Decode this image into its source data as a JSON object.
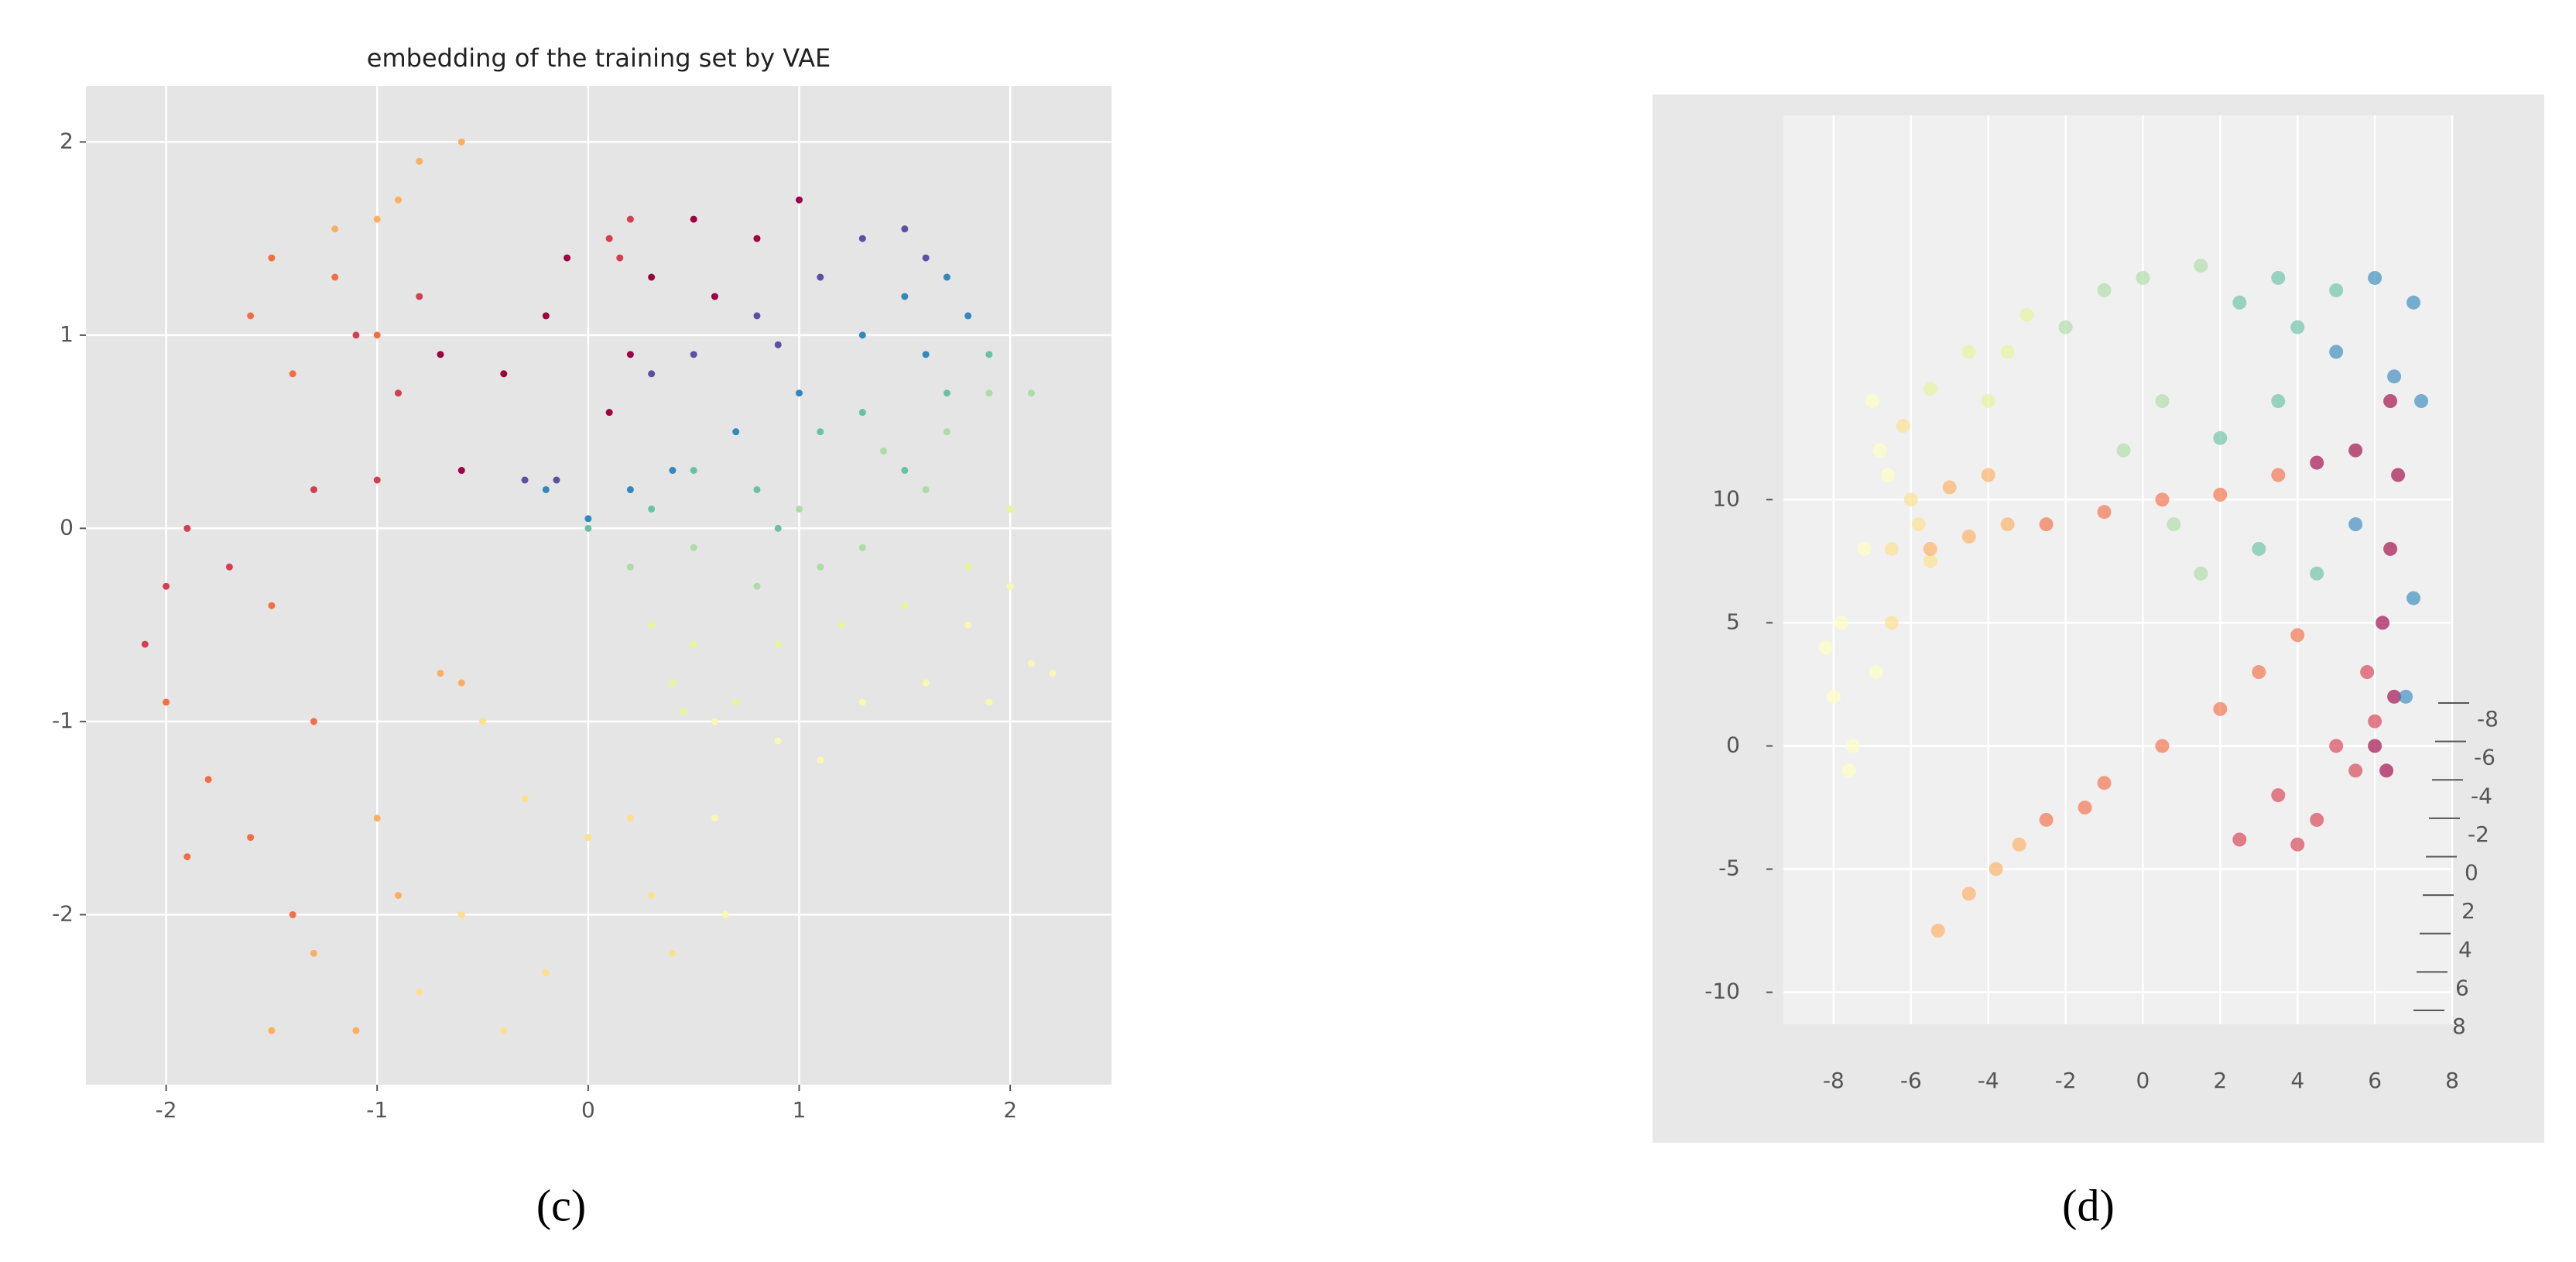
{
  "chart_data": [
    {
      "type": "scatter",
      "title": "embedding of the training set by VAE",
      "caption": "(c)",
      "xlim": [
        -2.38,
        2.48
      ],
      "ylim": [
        -2.88,
        2.29
      ],
      "xticks": [
        -2,
        -1,
        0,
        1,
        2
      ],
      "yticks": [
        -2,
        -1,
        0,
        1,
        2
      ],
      "grid": true,
      "series": [
        {
          "color": "#9e0142",
          "x": [
            -0.6,
            -0.4,
            -0.2,
            0.1,
            0.3,
            0.5,
            0.8,
            1.0,
            0.6,
            -0.1,
            -0.7,
            0.2
          ],
          "y": [
            0.3,
            0.8,
            1.1,
            0.6,
            1.3,
            1.6,
            1.5,
            1.7,
            1.2,
            1.4,
            0.9,
            0.9
          ]
        },
        {
          "color": "#d53e4f",
          "x": [
            0.1,
            0.2,
            0.15,
            -1.1,
            -0.9,
            -0.8,
            -2.0,
            -1.9,
            -2.1,
            -1.7,
            -1.0,
            -1.3
          ],
          "y": [
            1.5,
            1.6,
            1.4,
            1.0,
            0.7,
            1.2,
            -0.3,
            0.0,
            -0.6,
            -0.2,
            0.25,
            0.2
          ]
        },
        {
          "color": "#f46d43",
          "x": [
            -1.5,
            -1.6,
            -1.4,
            -1.2,
            -1.0,
            -2.0,
            -1.8,
            -1.6,
            -1.5,
            -1.3,
            -1.9,
            -1.4
          ],
          "y": [
            1.4,
            1.1,
            0.8,
            1.3,
            1.0,
            -0.9,
            -1.3,
            -1.6,
            -0.4,
            -1.0,
            -1.7,
            -2.0
          ]
        },
        {
          "color": "#fdae61",
          "x": [
            -1.0,
            -0.8,
            -0.6,
            -0.9,
            -1.2,
            -0.7,
            -0.6,
            -1.0,
            -1.3,
            -1.5,
            -1.1,
            -0.9
          ],
          "y": [
            1.6,
            1.9,
            2.0,
            1.7,
            1.55,
            -0.75,
            -0.8,
            -1.5,
            -2.2,
            -2.6,
            -2.6,
            -1.9
          ]
        },
        {
          "color": "#fee08b",
          "x": [
            -0.5,
            -0.3,
            -0.6,
            -0.2,
            0.0,
            -0.8,
            0.4,
            0.3,
            -0.4,
            0.2
          ],
          "y": [
            -1.0,
            -1.4,
            -2.0,
            -2.3,
            -1.6,
            -2.4,
            -2.2,
            -1.9,
            -2.6,
            -1.5
          ]
        },
        {
          "color": "#f7f9b0",
          "x": [
            0.6,
            0.9,
            1.3,
            1.6,
            1.9,
            2.1,
            2.2,
            1.1,
            0.6,
            0.65,
            1.8,
            2.0
          ],
          "y": [
            -1.0,
            -1.1,
            -0.9,
            -0.8,
            -0.9,
            -0.7,
            -0.75,
            -1.2,
            -1.5,
            -2.0,
            -0.5,
            -0.3
          ]
        },
        {
          "color": "#e6f598",
          "x": [
            0.3,
            0.4,
            0.5,
            0.7,
            0.9,
            1.2,
            0.45,
            1.5,
            1.8,
            2.0
          ],
          "y": [
            -0.5,
            -0.8,
            -0.6,
            -0.9,
            -0.6,
            -0.5,
            -0.95,
            -0.4,
            -0.2,
            0.1
          ]
        },
        {
          "color": "#abdda4",
          "x": [
            0.2,
            0.5,
            0.8,
            1.0,
            1.3,
            1.6,
            1.7,
            1.9,
            2.1,
            1.4,
            1.1
          ],
          "y": [
            -0.2,
            -0.1,
            -0.3,
            0.1,
            -0.1,
            0.2,
            0.5,
            0.7,
            0.7,
            0.4,
            -0.2
          ]
        },
        {
          "color": "#66c2a5",
          "x": [
            0.0,
            0.3,
            0.5,
            0.8,
            1.1,
            1.3,
            1.5,
            1.7,
            1.9,
            0.9
          ],
          "y": [
            0.0,
            0.1,
            0.3,
            0.2,
            0.5,
            0.6,
            0.3,
            0.7,
            0.9,
            0.0
          ]
        },
        {
          "color": "#3288bd",
          "x": [
            -0.2,
            0.0,
            0.2,
            0.4,
            0.7,
            1.0,
            1.3,
            1.5,
            1.7,
            1.8,
            1.6
          ],
          "y": [
            0.2,
            0.05,
            0.2,
            0.3,
            0.5,
            0.7,
            1.0,
            1.2,
            1.3,
            1.1,
            0.9
          ]
        },
        {
          "color": "#5e4fa2",
          "x": [
            -0.15,
            -0.3,
            0.3,
            0.5,
            0.8,
            1.1,
            1.3,
            1.5,
            1.6,
            0.9
          ],
          "y": [
            0.25,
            0.25,
            0.8,
            0.9,
            1.1,
            1.3,
            1.5,
            1.55,
            1.4,
            0.95
          ]
        }
      ]
    },
    {
      "type": "scatter3d",
      "caption": "(d)",
      "xlim": [
        -9.3,
        8.0
      ],
      "zlim": [
        -11.3,
        25.6
      ],
      "xticks": [
        -8,
        -6,
        -4,
        -2,
        0,
        2,
        4,
        6,
        8
      ],
      "zticks": [
        -10,
        -5,
        0,
        5,
        10
      ],
      "yticks": [
        -8,
        -6,
        -4,
        -2,
        0,
        2,
        4,
        6,
        8
      ],
      "grid": true,
      "series": [
        {
          "color": "#ffffbf",
          "x": [
            -8.0,
            -7.5,
            -7.8,
            -7.2,
            -6.8,
            -7.0,
            -6.6,
            -8.2,
            -7.6,
            -6.9
          ],
          "z": [
            2,
            0,
            5,
            8,
            12,
            14,
            11,
            4,
            -1,
            3
          ]
        },
        {
          "color": "#fee08b",
          "x": [
            -6.5,
            -6.0,
            -6.2,
            -5.8,
            -5.5,
            -6.5
          ],
          "z": [
            8,
            10,
            13,
            9,
            7.5,
            5
          ]
        },
        {
          "color": "#fdae61",
          "x": [
            -5.5,
            -4.5,
            -3.5,
            -5.0,
            -4.0,
            -4.5,
            -5.3,
            -3.8,
            -3.2
          ],
          "z": [
            8,
            8.5,
            9,
            10.5,
            11,
            -6,
            -7.5,
            -5,
            -4
          ]
        },
        {
          "color": "#f46d43",
          "x": [
            -2.5,
            -1.0,
            0.5,
            2,
            3.5,
            -2.5,
            -1,
            0.5,
            2,
            3,
            4,
            -1.5
          ],
          "z": [
            9,
            9.5,
            10,
            10.2,
            11,
            -3,
            -1.5,
            0,
            1.5,
            3,
            4.5,
            -2.5
          ]
        },
        {
          "color": "#d53e4f",
          "x": [
            3.5,
            4.5,
            5.5,
            6.0,
            5.0,
            4.0,
            2.5,
            5.8
          ],
          "z": [
            -2,
            -3,
            -1,
            1,
            0,
            -4,
            -3.8,
            3
          ]
        },
        {
          "color": "#9e0142",
          "x": [
            6.3,
            6.5,
            6.2,
            6.4,
            6.6,
            6.4,
            5.5,
            4.5,
            6.0
          ],
          "z": [
            -1,
            2,
            5,
            8,
            11,
            14,
            12,
            11.5,
            0
          ]
        },
        {
          "color": "#3288bd",
          "x": [
            5.0,
            6.0,
            7.0,
            6.5,
            7.2,
            6.8,
            7.0,
            5.5
          ],
          "z": [
            16,
            19,
            18,
            15,
            14,
            2,
            6,
            9
          ]
        },
        {
          "color": "#66c2a5",
          "x": [
            3.5,
            2.5,
            4.0,
            3.0,
            4.5,
            2.0,
            3.5,
            5
          ],
          "z": [
            19,
            18,
            17,
            8,
            7,
            12.5,
            14,
            18.5
          ]
        },
        {
          "color": "#abdda4",
          "x": [
            0,
            1.5,
            -1,
            -2,
            0.5,
            -0.5,
            1.5,
            0.8
          ],
          "z": [
            19,
            19.5,
            18.5,
            17,
            14,
            12,
            7,
            9
          ]
        },
        {
          "color": "#e6f598",
          "x": [
            -3.0,
            -4.5,
            -5.5,
            -4,
            -3.5
          ],
          "z": [
            17.5,
            16,
            14.5,
            14,
            16
          ]
        }
      ]
    }
  ]
}
